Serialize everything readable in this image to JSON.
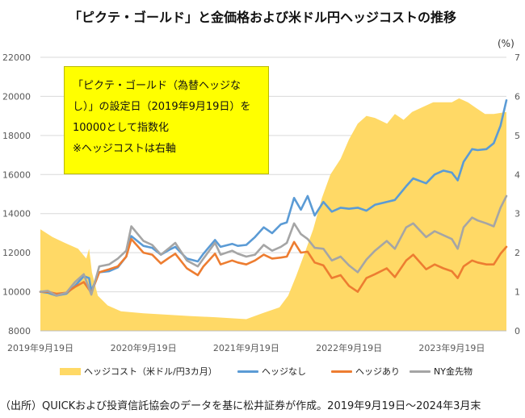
{
  "title": "「ピクテ・ゴールド」と金価格および米ドル円ヘッジコストの推移",
  "unit_label": "(%)",
  "annotation": {
    "line1": "「ピクテ・ゴールド（為替ヘッジな",
    "line2": "し）」の設定日（2019年9月19日）を",
    "line3": "10000として指数化",
    "line4": "※ヘッジコストは右軸"
  },
  "source": "（出所）QUICKおよび投資信託協会のデータを基に松井証券が作成。2019年9月19日～2024年3月末",
  "chart_data": {
    "type": "line",
    "x_range": [
      "2019-09-19",
      "2024-03-31"
    ],
    "x_tick_labels": [
      "2019年9月19日",
      "2020年9月19日",
      "2021年9月19日",
      "2022年9月19日",
      "2023年9月19日"
    ],
    "left_axis": {
      "ylim": [
        8000,
        22000
      ],
      "ticks": [
        "8000",
        "10000",
        "12000",
        "14000",
        "16000",
        "18000",
        "20000",
        "22000"
      ]
    },
    "right_axis": {
      "ylim": [
        0,
        7
      ],
      "ticks": [
        "0",
        "1",
        "2",
        "3",
        "4",
        "5",
        "6",
        "7"
      ]
    },
    "legend_position": "bottom",
    "grid": "horizontal",
    "series": [
      {
        "name": "ヘッジコスト（米ドル/円3カ月）",
        "kind": "area",
        "axis": "right",
        "color": "#ffd966",
        "points": [
          [
            "2019-09-19",
            2.6
          ],
          [
            "2019-11-01",
            2.4
          ],
          [
            "2019-12-15",
            2.25
          ],
          [
            "2020-01-31",
            2.1
          ],
          [
            "2020-02-29",
            1.85
          ],
          [
            "2020-03-10",
            2.1
          ],
          [
            "2020-03-20",
            1.5
          ],
          [
            "2020-04-10",
            0.9
          ],
          [
            "2020-05-15",
            0.65
          ],
          [
            "2020-07-01",
            0.5
          ],
          [
            "2020-09-19",
            0.45
          ],
          [
            "2020-12-01",
            0.42
          ],
          [
            "2021-03-01",
            0.38
          ],
          [
            "2021-06-01",
            0.35
          ],
          [
            "2021-09-19",
            0.3
          ],
          [
            "2021-11-15",
            0.45
          ],
          [
            "2022-01-15",
            0.6
          ],
          [
            "2022-02-15",
            0.9
          ],
          [
            "2022-03-15",
            1.4
          ],
          [
            "2022-04-15",
            2.0
          ],
          [
            "2022-05-15",
            2.6
          ],
          [
            "2022-06-15",
            3.4
          ],
          [
            "2022-07-15",
            4.0
          ],
          [
            "2022-08-20",
            4.4
          ],
          [
            "2022-09-19",
            4.9
          ],
          [
            "2022-10-20",
            5.3
          ],
          [
            "2022-11-20",
            5.5
          ],
          [
            "2022-12-20",
            5.45
          ],
          [
            "2023-02-01",
            5.3
          ],
          [
            "2023-03-01",
            5.55
          ],
          [
            "2023-04-01",
            5.4
          ],
          [
            "2023-05-01",
            5.6
          ],
          [
            "2023-06-15",
            5.75
          ],
          [
            "2023-07-15",
            5.85
          ],
          [
            "2023-09-19",
            5.85
          ],
          [
            "2023-10-15",
            5.95
          ],
          [
            "2023-11-15",
            5.85
          ],
          [
            "2023-12-15",
            5.7
          ],
          [
            "2024-01-15",
            5.55
          ],
          [
            "2024-02-15",
            5.55
          ],
          [
            "2024-03-31",
            5.6
          ]
        ]
      },
      {
        "name": "ヘッジなし",
        "kind": "line",
        "axis": "left",
        "color": "#5b9bd5",
        "points": [
          [
            "2019-09-19",
            10000
          ],
          [
            "2019-10-15",
            9950
          ],
          [
            "2019-11-15",
            9800
          ],
          [
            "2019-12-20",
            9900
          ],
          [
            "2020-01-20",
            10300
          ],
          [
            "2020-02-20",
            10800
          ],
          [
            "2020-03-10",
            10700
          ],
          [
            "2020-03-18",
            10050
          ],
          [
            "2020-04-15",
            11000
          ],
          [
            "2020-05-20",
            11050
          ],
          [
            "2020-06-20",
            11250
          ],
          [
            "2020-07-20",
            11800
          ],
          [
            "2020-08-07",
            12850
          ],
          [
            "2020-09-19",
            12350
          ],
          [
            "2020-10-20",
            12250
          ],
          [
            "2020-11-20",
            11900
          ],
          [
            "2020-12-20",
            12150
          ],
          [
            "2021-01-10",
            12300
          ],
          [
            "2021-02-20",
            11700
          ],
          [
            "2021-03-31",
            11550
          ],
          [
            "2021-04-20",
            11950
          ],
          [
            "2021-05-31",
            12650
          ],
          [
            "2021-06-20",
            12300
          ],
          [
            "2021-07-31",
            12450
          ],
          [
            "2021-08-20",
            12350
          ],
          [
            "2021-09-19",
            12400
          ],
          [
            "2021-10-20",
            12800
          ],
          [
            "2021-11-20",
            13300
          ],
          [
            "2021-12-20",
            13000
          ],
          [
            "2022-01-20",
            13450
          ],
          [
            "2022-02-10",
            13550
          ],
          [
            "2022-03-08",
            14800
          ],
          [
            "2022-04-01",
            14200
          ],
          [
            "2022-04-25",
            14900
          ],
          [
            "2022-05-20",
            13900
          ],
          [
            "2022-06-20",
            14600
          ],
          [
            "2022-07-20",
            14100
          ],
          [
            "2022-08-20",
            14300
          ],
          [
            "2022-09-19",
            14250
          ],
          [
            "2022-10-20",
            14300
          ],
          [
            "2022-11-20",
            14150
          ],
          [
            "2022-12-20",
            14450
          ],
          [
            "2023-01-31",
            14600
          ],
          [
            "2023-03-01",
            14700
          ],
          [
            "2023-04-10",
            15400
          ],
          [
            "2023-05-05",
            15800
          ],
          [
            "2023-06-20",
            15550
          ],
          [
            "2023-07-20",
            16000
          ],
          [
            "2023-08-20",
            16200
          ],
          [
            "2023-09-19",
            16100
          ],
          [
            "2023-10-10",
            15700
          ],
          [
            "2023-10-31",
            16650
          ],
          [
            "2023-11-30",
            17300
          ],
          [
            "2023-12-20",
            17250
          ],
          [
            "2024-01-20",
            17300
          ],
          [
            "2024-02-15",
            17600
          ],
          [
            "2024-03-10",
            18500
          ],
          [
            "2024-03-31",
            19800
          ]
        ]
      },
      {
        "name": "ヘッジあり",
        "kind": "line",
        "axis": "left",
        "color": "#ed7d31",
        "points": [
          [
            "2019-09-19",
            10000
          ],
          [
            "2019-10-15",
            10000
          ],
          [
            "2019-11-15",
            9900
          ],
          [
            "2019-12-20",
            9950
          ],
          [
            "2020-01-20",
            10250
          ],
          [
            "2020-02-20",
            10500
          ],
          [
            "2020-03-18",
            9950
          ],
          [
            "2020-04-15",
            11000
          ],
          [
            "2020-05-20",
            11150
          ],
          [
            "2020-06-20",
            11300
          ],
          [
            "2020-07-20",
            11800
          ],
          [
            "2020-08-07",
            12700
          ],
          [
            "2020-09-19",
            12000
          ],
          [
            "2020-10-20",
            11900
          ],
          [
            "2020-11-20",
            11450
          ],
          [
            "2020-12-20",
            11750
          ],
          [
            "2021-01-10",
            11950
          ],
          [
            "2021-02-20",
            11200
          ],
          [
            "2021-03-31",
            10850
          ],
          [
            "2021-04-20",
            11300
          ],
          [
            "2021-05-31",
            11950
          ],
          [
            "2021-06-20",
            11400
          ],
          [
            "2021-07-31",
            11600
          ],
          [
            "2021-08-20",
            11500
          ],
          [
            "2021-09-19",
            11400
          ],
          [
            "2021-10-20",
            11600
          ],
          [
            "2021-11-20",
            11900
          ],
          [
            "2021-12-20",
            11700
          ],
          [
            "2022-01-20",
            11750
          ],
          [
            "2022-02-10",
            11800
          ],
          [
            "2022-03-08",
            12550
          ],
          [
            "2022-04-01",
            12000
          ],
          [
            "2022-04-25",
            12050
          ],
          [
            "2022-05-20",
            11500
          ],
          [
            "2022-06-20",
            11350
          ],
          [
            "2022-07-20",
            10700
          ],
          [
            "2022-08-20",
            10850
          ],
          [
            "2022-09-19",
            10300
          ],
          [
            "2022-10-20",
            10000
          ],
          [
            "2022-11-20",
            10700
          ],
          [
            "2022-12-20",
            10900
          ],
          [
            "2023-01-31",
            11200
          ],
          [
            "2023-03-01",
            10750
          ],
          [
            "2023-04-10",
            11600
          ],
          [
            "2023-05-05",
            11900
          ],
          [
            "2023-06-20",
            11150
          ],
          [
            "2023-07-20",
            11400
          ],
          [
            "2023-08-20",
            11200
          ],
          [
            "2023-09-19",
            11050
          ],
          [
            "2023-10-10",
            10700
          ],
          [
            "2023-10-31",
            11300
          ],
          [
            "2023-11-30",
            11600
          ],
          [
            "2023-12-20",
            11500
          ],
          [
            "2024-01-20",
            11400
          ],
          [
            "2024-02-15",
            11400
          ],
          [
            "2024-03-10",
            11950
          ],
          [
            "2024-03-31",
            12300
          ]
        ]
      },
      {
        "name": "NY金先物",
        "kind": "line",
        "axis": "left",
        "color": "#a5a5a5",
        "points": [
          [
            "2019-09-19",
            10000
          ],
          [
            "2019-10-15",
            10050
          ],
          [
            "2019-11-15",
            9800
          ],
          [
            "2019-12-20",
            9950
          ],
          [
            "2020-01-20",
            10500
          ],
          [
            "2020-02-20",
            10900
          ],
          [
            "2020-03-18",
            9850
          ],
          [
            "2020-04-15",
            11300
          ],
          [
            "2020-05-20",
            11400
          ],
          [
            "2020-06-20",
            11700
          ],
          [
            "2020-07-20",
            12100
          ],
          [
            "2020-08-07",
            13350
          ],
          [
            "2020-09-19",
            12600
          ],
          [
            "2020-10-20",
            12400
          ],
          [
            "2020-11-20",
            11900
          ],
          [
            "2020-12-20",
            12250
          ],
          [
            "2021-01-10",
            12500
          ],
          [
            "2021-02-20",
            11600
          ],
          [
            "2021-03-31",
            11300
          ],
          [
            "2021-04-20",
            11700
          ],
          [
            "2021-05-31",
            12500
          ],
          [
            "2021-06-20",
            11900
          ],
          [
            "2021-07-31",
            12100
          ],
          [
            "2021-08-20",
            11950
          ],
          [
            "2021-09-19",
            11800
          ],
          [
            "2021-10-20",
            11900
          ],
          [
            "2021-11-20",
            12400
          ],
          [
            "2021-12-20",
            12100
          ],
          [
            "2022-01-20",
            12300
          ],
          [
            "2022-02-10",
            12500
          ],
          [
            "2022-03-08",
            13500
          ],
          [
            "2022-04-01",
            12950
          ],
          [
            "2022-04-25",
            12700
          ],
          [
            "2022-05-20",
            12250
          ],
          [
            "2022-06-20",
            12200
          ],
          [
            "2022-07-20",
            11600
          ],
          [
            "2022-08-20",
            11800
          ],
          [
            "2022-09-19",
            11350
          ],
          [
            "2022-10-20",
            11000
          ],
          [
            "2022-11-20",
            11650
          ],
          [
            "2022-12-20",
            12100
          ],
          [
            "2023-01-31",
            12600
          ],
          [
            "2023-03-01",
            12200
          ],
          [
            "2023-04-10",
            13300
          ],
          [
            "2023-05-05",
            13500
          ],
          [
            "2023-06-20",
            12800
          ],
          [
            "2023-07-20",
            13100
          ],
          [
            "2023-08-20",
            12900
          ],
          [
            "2023-09-19",
            12700
          ],
          [
            "2023-10-10",
            12200
          ],
          [
            "2023-10-31",
            13300
          ],
          [
            "2023-11-30",
            13800
          ],
          [
            "2023-12-20",
            13650
          ],
          [
            "2024-01-20",
            13500
          ],
          [
            "2024-02-15",
            13350
          ],
          [
            "2024-03-10",
            14300
          ],
          [
            "2024-03-31",
            14900
          ]
        ]
      }
    ]
  }
}
